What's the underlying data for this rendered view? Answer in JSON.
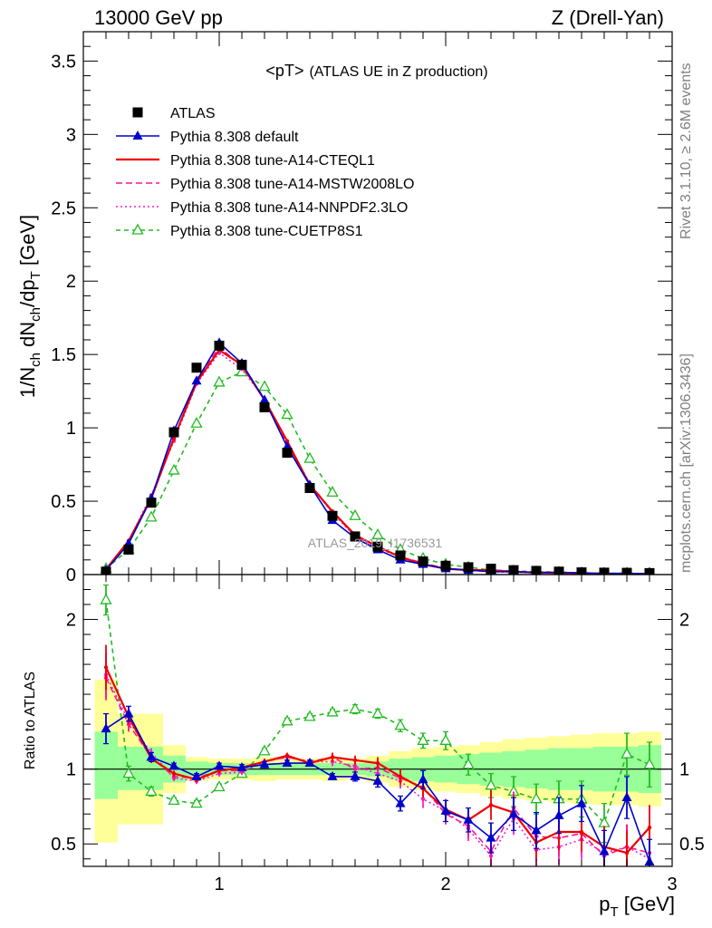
{
  "header": {
    "left": "13000 GeV pp",
    "right": "Z (Drell-Yan)"
  },
  "side_labels": {
    "rivet": "Rivet 3.1.10, ≥ 2.6M events",
    "mcplots": "mcplots.cern.ch [arXiv:1306.3436]"
  },
  "watermark": "ATLAS_2019_I1736531",
  "chart_data": [
    {
      "type": "line",
      "title": "<pT>",
      "title_suffix": "(ATLAS UE in Z production)",
      "ylabel": "1/N_ch dN_ch/dp_T [GeV]",
      "ylabel_parts": {
        "a": "1/N",
        "b": "ch",
        "c": " dN",
        "d": "ch",
        "e": "/dp",
        "f": "T",
        "g": " [GeV]"
      },
      "xlim": [
        0.4,
        3.0
      ],
      "ylim": [
        0,
        3.7
      ],
      "yticks": [
        0,
        0.5,
        1,
        1.5,
        2,
        2.5,
        3,
        3.5
      ],
      "ytick_labels": [
        "0",
        "0.5",
        "1",
        "1.5",
        "2",
        "2.5",
        "3",
        "3.5"
      ],
      "legend_position": "top-left",
      "x": [
        0.5,
        0.6,
        0.7,
        0.8,
        0.9,
        1.0,
        1.1,
        1.2,
        1.3,
        1.4,
        1.5,
        1.6,
        1.7,
        1.8,
        1.9,
        2.0,
        2.1,
        2.2,
        2.3,
        2.4,
        2.5,
        2.6,
        2.7,
        2.8,
        2.9
      ],
      "series": [
        {
          "name": "ATLAS",
          "color": "#000000",
          "style": "data",
          "values": [
            0.02,
            0.17,
            0.49,
            0.97,
            1.41,
            1.56,
            1.43,
            1.14,
            0.83,
            0.59,
            0.4,
            0.26,
            0.19,
            0.13,
            0.09,
            0.06,
            0.05,
            0.04,
            0.03,
            0.025,
            0.02,
            0.015,
            0.013,
            0.012,
            0.01
          ]
        },
        {
          "name": "Pythia 8.308 default",
          "color": "#0000cc",
          "style": "triangle",
          "values": [
            0.03,
            0.21,
            0.52,
            0.98,
            1.32,
            1.58,
            1.44,
            1.19,
            0.87,
            0.61,
            0.37,
            0.25,
            0.17,
            0.1,
            0.07,
            0.04,
            0.03,
            0.02,
            0.02,
            0.015,
            0.015,
            0.011,
            0.006,
            0.01,
            0.004
          ]
        },
        {
          "name": "Pythia 8.308 tune-A14-CTEQL1",
          "color": "#ee0000",
          "style": "solid",
          "values": [
            0.035,
            0.23,
            0.52,
            0.93,
            1.31,
            1.53,
            1.43,
            1.19,
            0.91,
            0.61,
            0.43,
            0.27,
            0.19,
            0.12,
            0.07,
            0.04,
            0.03,
            0.03,
            0.02,
            0.013,
            0.012,
            0.009,
            0.007,
            0.005,
            0.006
          ]
        },
        {
          "name": "Pythia 8.308 tune-A14-MSTW2008LO",
          "color": "#ff1493",
          "style": "dashed",
          "values": [
            0.034,
            0.22,
            0.53,
            0.92,
            1.33,
            1.55,
            1.42,
            1.2,
            0.89,
            0.62,
            0.43,
            0.26,
            0.19,
            0.12,
            0.08,
            0.04,
            0.03,
            0.02,
            0.02,
            0.012,
            0.011,
            0.008,
            0.006,
            0.006,
            0.005
          ]
        },
        {
          "name": "Pythia 8.308 tune-A14-NNPDF2.3LO",
          "color": "#ee22cc",
          "style": "dotted",
          "values": [
            0.036,
            0.23,
            0.54,
            0.91,
            1.3,
            1.51,
            1.4,
            1.2,
            0.9,
            0.62,
            0.42,
            0.26,
            0.18,
            0.12,
            0.07,
            0.04,
            0.03,
            0.02,
            0.015,
            0.012,
            0.01,
            0.008,
            0.006,
            0.006,
            0.005
          ]
        },
        {
          "name": "Pythia 8.308 tune-CUETP8S1",
          "color": "#22bb22",
          "style": "open-triangle",
          "values": [
            0.04,
            0.17,
            0.39,
            0.71,
            1.03,
            1.31,
            1.38,
            1.28,
            1.09,
            0.79,
            0.56,
            0.4,
            0.27,
            0.17,
            0.11,
            0.07,
            0.05,
            0.03,
            0.025,
            0.02,
            0.016,
            0.012,
            0.009,
            0.008,
            0.007
          ]
        }
      ]
    },
    {
      "type": "line",
      "ylabel": "Ratio to ATLAS",
      "xlabel": "p_T [GeV]",
      "xlabel_parts": {
        "a": "p",
        "b": "T",
        "c": " [GeV]"
      },
      "xlim": [
        0.4,
        3.0
      ],
      "ylim": [
        0.35,
        2.3
      ],
      "xticks": [
        1,
        2,
        3
      ],
      "xtick_labels": [
        "1",
        "2",
        "3"
      ],
      "yticks": [
        0.5,
        1,
        2
      ],
      "ytick_labels": [
        "0.5",
        "1",
        "2"
      ],
      "bands": {
        "x_edges": [
          0.45,
          0.55,
          0.65,
          0.75,
          0.85,
          0.95,
          1.05,
          1.15,
          1.25,
          1.35,
          1.45,
          1.55,
          1.65,
          1.75,
          1.85,
          1.95,
          2.05,
          2.15,
          2.25,
          2.35,
          2.45,
          2.55,
          2.65,
          2.75,
          2.85,
          2.95
        ],
        "yellow_low": [
          0.51,
          0.63,
          0.63,
          0.84,
          0.92,
          0.93,
          0.93,
          0.92,
          0.93,
          0.93,
          0.92,
          0.93,
          0.91,
          0.88,
          0.86,
          0.85,
          0.84,
          0.82,
          0.8,
          0.79,
          0.78,
          0.77,
          0.76,
          0.76,
          0.75
        ],
        "yellow_high": [
          1.6,
          1.37,
          1.37,
          1.16,
          1.08,
          1.07,
          1.07,
          1.08,
          1.07,
          1.07,
          1.08,
          1.07,
          1.09,
          1.12,
          1.14,
          1.15,
          1.16,
          1.18,
          1.2,
          1.21,
          1.22,
          1.23,
          1.24,
          1.24,
          1.25
        ],
        "green_low": [
          0.8,
          0.86,
          0.86,
          0.91,
          0.95,
          0.96,
          0.96,
          0.96,
          0.96,
          0.96,
          0.96,
          0.96,
          0.95,
          0.93,
          0.92,
          0.91,
          0.9,
          0.89,
          0.88,
          0.87,
          0.86,
          0.86,
          0.85,
          0.85,
          0.84
        ],
        "green_high": [
          1.25,
          1.15,
          1.15,
          1.09,
          1.05,
          1.04,
          1.04,
          1.04,
          1.04,
          1.04,
          1.04,
          1.04,
          1.05,
          1.07,
          1.08,
          1.09,
          1.1,
          1.11,
          1.12,
          1.13,
          1.14,
          1.14,
          1.15,
          1.15,
          1.16
        ]
      },
      "x": [
        0.5,
        0.6,
        0.7,
        0.8,
        0.9,
        1.0,
        1.1,
        1.2,
        1.3,
        1.4,
        1.5,
        1.6,
        1.7,
        1.8,
        1.9,
        2.0,
        2.1,
        2.2,
        2.3,
        2.4,
        2.5,
        2.6,
        2.7,
        2.8,
        2.9
      ],
      "series": [
        {
          "name": "Pythia 8.308 default",
          "color": "#0000cc",
          "style": "triangle",
          "values": [
            1.27,
            1.37,
            1.08,
            1.02,
            0.95,
            1.02,
            1.01,
            1.03,
            1.04,
            1.04,
            0.95,
            0.95,
            0.92,
            0.77,
            0.93,
            0.72,
            0.66,
            0.54,
            0.7,
            0.59,
            0.69,
            0.77,
            0.45,
            0.81,
            0.38
          ],
          "errors": [
            0.1,
            0.05,
            0.03,
            0.02,
            0.02,
            0.02,
            0.02,
            0.02,
            0.02,
            0.02,
            0.02,
            0.03,
            0.04,
            0.05,
            0.06,
            0.07,
            0.08,
            0.1,
            0.11,
            0.12,
            0.12,
            0.12,
            0.14,
            0.14,
            0.15
          ]
        },
        {
          "name": "Pythia 8.308 tune-A14-CTEQL1",
          "color": "#ee0000",
          "style": "solid",
          "values": [
            1.68,
            1.35,
            1.07,
            0.97,
            0.93,
            0.99,
            1.01,
            1.05,
            1.09,
            1.04,
            1.08,
            1.06,
            1.04,
            0.95,
            0.87,
            0.73,
            0.66,
            0.76,
            0.71,
            0.51,
            0.58,
            0.58,
            0.48,
            0.44,
            0.61
          ],
          "errors": [
            0.15,
            0.05,
            0.03,
            0.02,
            0.02,
            0.02,
            0.02,
            0.02,
            0.02,
            0.02,
            0.03,
            0.03,
            0.04,
            0.05,
            0.06,
            0.07,
            0.08,
            0.1,
            0.11,
            0.12,
            0.12,
            0.13,
            0.14,
            0.15,
            0.15
          ]
        },
        {
          "name": "Pythia 8.308 tune-A14-MSTW2008LO",
          "color": "#ff1493",
          "style": "dashed",
          "values": [
            1.61,
            1.3,
            1.08,
            0.95,
            0.94,
            0.99,
            0.99,
            1.05,
            1.08,
            1.05,
            1.08,
            1.0,
            1.01,
            0.94,
            0.88,
            0.7,
            0.62,
            0.45,
            0.74,
            0.55,
            0.54,
            0.57,
            0.42,
            0.48,
            0.44
          ],
          "errors": [
            0.15,
            0.05,
            0.03,
            0.02,
            0.02,
            0.02,
            0.02,
            0.02,
            0.02,
            0.02,
            0.03,
            0.03,
            0.04,
            0.05,
            0.06,
            0.07,
            0.08,
            0.1,
            0.11,
            0.12,
            0.12,
            0.13,
            0.14,
            0.15,
            0.15
          ]
        },
        {
          "name": "Pythia 8.308 tune-A14-NNPDF2.3LO",
          "color": "#ee22cc",
          "style": "dotted",
          "values": [
            1.63,
            1.32,
            1.11,
            0.94,
            0.92,
            0.97,
            0.98,
            1.05,
            1.08,
            1.05,
            1.05,
            1.02,
            0.97,
            0.92,
            0.8,
            0.72,
            0.6,
            0.42,
            0.67,
            0.46,
            0.48,
            0.53,
            0.44,
            0.48,
            0.4
          ],
          "errors": [
            0.15,
            0.05,
            0.03,
            0.02,
            0.02,
            0.02,
            0.02,
            0.02,
            0.02,
            0.02,
            0.03,
            0.03,
            0.04,
            0.05,
            0.06,
            0.07,
            0.08,
            0.1,
            0.11,
            0.12,
            0.12,
            0.13,
            0.14,
            0.15,
            0.15
          ]
        },
        {
          "name": "Pythia 8.308 tune-CUETP8S1",
          "color": "#22bb22",
          "style": "open-triangle",
          "values": [
            2.13,
            0.97,
            0.85,
            0.79,
            0.77,
            0.88,
            0.97,
            1.12,
            1.32,
            1.35,
            1.38,
            1.4,
            1.37,
            1.29,
            1.19,
            1.19,
            1.03,
            0.89,
            0.85,
            0.8,
            0.8,
            0.8,
            0.64,
            1.1,
            1.03
          ],
          "errors": [
            0.1,
            0.05,
            0.03,
            0.02,
            0.02,
            0.02,
            0.02,
            0.02,
            0.02,
            0.02,
            0.02,
            0.03,
            0.03,
            0.04,
            0.05,
            0.06,
            0.07,
            0.08,
            0.1,
            0.1,
            0.12,
            0.12,
            0.13,
            0.14,
            0.15
          ]
        }
      ]
    }
  ]
}
